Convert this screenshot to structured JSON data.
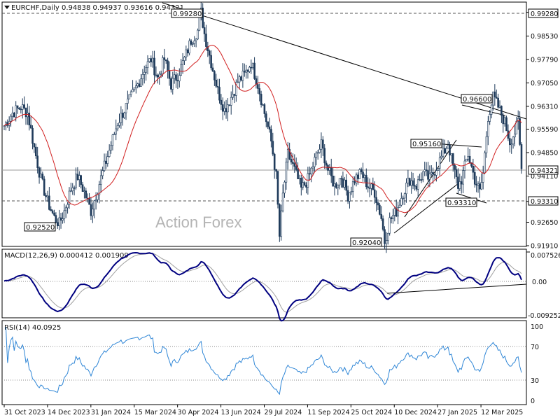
{
  "header": {
    "symbol": "EURCHF,Daily",
    "ohlc": "0.94838 0.94937 0.93616 0.94321"
  },
  "watermark": "Action Forex",
  "colors": {
    "candles": "#1e3a5a",
    "ma": "#d11f1f",
    "macd": "#000080",
    "signal": "#a0a0a0",
    "rsi": "#2f86d6",
    "grid_dots": "#888888",
    "trendline": "#000000"
  },
  "chart_data": [
    {
      "type": "candlestick",
      "panel": "price",
      "ylim": [
        0.9191,
        0.9958
      ],
      "y_ticks": [
        "0.99280",
        "0.98530",
        "0.97790",
        "0.97050",
        "0.96310",
        "0.95590",
        "0.94850",
        "0.94110",
        "0.93310",
        "0.92650",
        "0.91910"
      ],
      "x_labels": [
        "31 Oct 2023",
        "14 Dec 2023",
        "31 Jan 2024",
        "15 Mar 2024",
        "30 Apr 2024",
        "13 Jun 2024",
        "29 Jul 2024",
        "11 Sep 2024",
        "25 Oct 2024",
        "10 Dec 2024",
        "27 Jan 2025",
        "12 Mar 2025"
      ],
      "current_price": "0.94321",
      "level_331": "0.93310",
      "level_928": "0.99280",
      "anchors": [
        [
          0,
          0.957
        ],
        [
          5,
          0.961
        ],
        [
          10,
          0.963
        ],
        [
          14,
          0.961
        ],
        [
          18,
          0.95
        ],
        [
          22,
          0.94
        ],
        [
          26,
          0.933
        ],
        [
          30,
          0.928
        ],
        [
          33,
          0.926
        ],
        [
          36,
          0.93
        ],
        [
          40,
          0.937
        ],
        [
          44,
          0.941
        ],
        [
          48,
          0.936
        ],
        [
          52,
          0.93
        ],
        [
          56,
          0.937
        ],
        [
          60,
          0.944
        ],
        [
          64,
          0.951
        ],
        [
          68,
          0.958
        ],
        [
          72,
          0.962
        ],
        [
          76,
          0.966
        ],
        [
          80,
          0.97
        ],
        [
          84,
          0.975
        ],
        [
          88,
          0.978
        ],
        [
          92,
          0.972
        ],
        [
          96,
          0.978
        ],
        [
          100,
          0.97
        ],
        [
          104,
          0.973
        ],
        [
          108,
          0.978
        ],
        [
          112,
          0.984
        ],
        [
          116,
          0.987
        ],
        [
          118,
          0.9928
        ],
        [
          120,
          0.986
        ],
        [
          124,
          0.977
        ],
        [
          128,
          0.968
        ],
        [
          132,
          0.962
        ],
        [
          136,
          0.966
        ],
        [
          140,
          0.971
        ],
        [
          144,
          0.973
        ],
        [
          148,
          0.977
        ],
        [
          152,
          0.97
        ],
        [
          156,
          0.961
        ],
        [
          160,
          0.952
        ],
        [
          163,
          0.941
        ],
        [
          165,
          0.922
        ],
        [
          167,
          0.935
        ],
        [
          170,
          0.948
        ],
        [
          174,
          0.943
        ],
        [
          178,
          0.937
        ],
        [
          182,
          0.94
        ],
        [
          186,
          0.946
        ],
        [
          190,
          0.951
        ],
        [
          194,
          0.943
        ],
        [
          198,
          0.938
        ],
        [
          202,
          0.941
        ],
        [
          206,
          0.935
        ],
        [
          210,
          0.94
        ],
        [
          214,
          0.942
        ],
        [
          218,
          0.938
        ],
        [
          222,
          0.936
        ],
        [
          226,
          0.928
        ],
        [
          228,
          0.9204
        ],
        [
          231,
          0.927
        ],
        [
          235,
          0.93
        ],
        [
          239,
          0.936
        ],
        [
          243,
          0.94
        ],
        [
          247,
          0.938
        ],
        [
          251,
          0.942
        ],
        [
          255,
          0.94
        ],
        [
          259,
          0.944
        ],
        [
          263,
          0.948
        ],
        [
          266,
          0.9516
        ],
        [
          269,
          0.944
        ],
        [
          272,
          0.938
        ],
        [
          274,
          0.94
        ],
        [
          278,
          0.948
        ],
        [
          282,
          0.94
        ],
        [
          285,
          0.936
        ],
        [
          287,
          0.942
        ],
        [
          290,
          0.96
        ],
        [
          293,
          0.966
        ],
        [
          296,
          0.963
        ],
        [
          300,
          0.958
        ],
        [
          303,
          0.952
        ],
        [
          306,
          0.955
        ],
        [
          308,
          0.958
        ],
        [
          310,
          0.94321
        ]
      ],
      "annotations": [
        "0.99280",
        "0.96600",
        "0.95160",
        "0.93310",
        "0.92520",
        "0.92040"
      ]
    },
    {
      "type": "line",
      "panel": "macd",
      "title": "MACD(12,26,9) 0.000412 0.001909",
      "ylim": [
        -0.009252,
        0.007526
      ],
      "y_ticks": [
        "0.007526",
        "0.00",
        "-0.009252"
      ]
    },
    {
      "type": "line",
      "panel": "rsi",
      "title": "RSI(14) 40.0925",
      "ylim": [
        0,
        100
      ],
      "y_ticks": [
        "100",
        "70",
        "30",
        "0"
      ]
    }
  ]
}
